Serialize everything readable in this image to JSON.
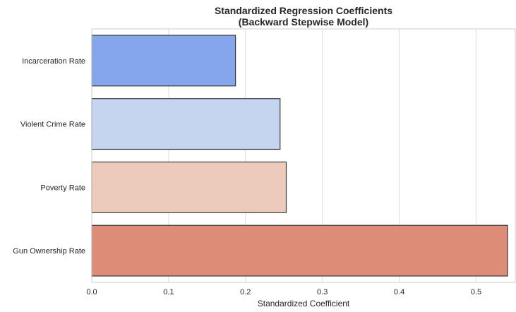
{
  "chart_data": {
    "type": "bar",
    "orientation": "horizontal",
    "title": "Standardized Regression Coefficients\n(Backward Stepwise Model)",
    "title_lines": [
      "Standardized Regression Coefficients",
      "(Backward Stepwise Model)"
    ],
    "xlabel": "Standardized Coefficient",
    "ylabel": "",
    "categories": [
      "Incarceration Rate",
      "Violent Crime Rate",
      "Poverty Rate",
      "Gun Ownership Rate"
    ],
    "values": [
      0.187,
      0.245,
      0.253,
      0.541
    ],
    "colors": [
      "#86a6ec",
      "#c6d5ef",
      "#eccbbb",
      "#dc8c77"
    ],
    "xlim": [
      0,
      0.551
    ],
    "xticks": [
      0.0,
      0.1,
      0.2,
      0.3,
      0.4,
      0.5
    ],
    "xtick_labels": [
      "0.0",
      "0.1",
      "0.2",
      "0.3",
      "0.4",
      "0.5"
    ],
    "grid": "vertical",
    "legend": "none"
  }
}
